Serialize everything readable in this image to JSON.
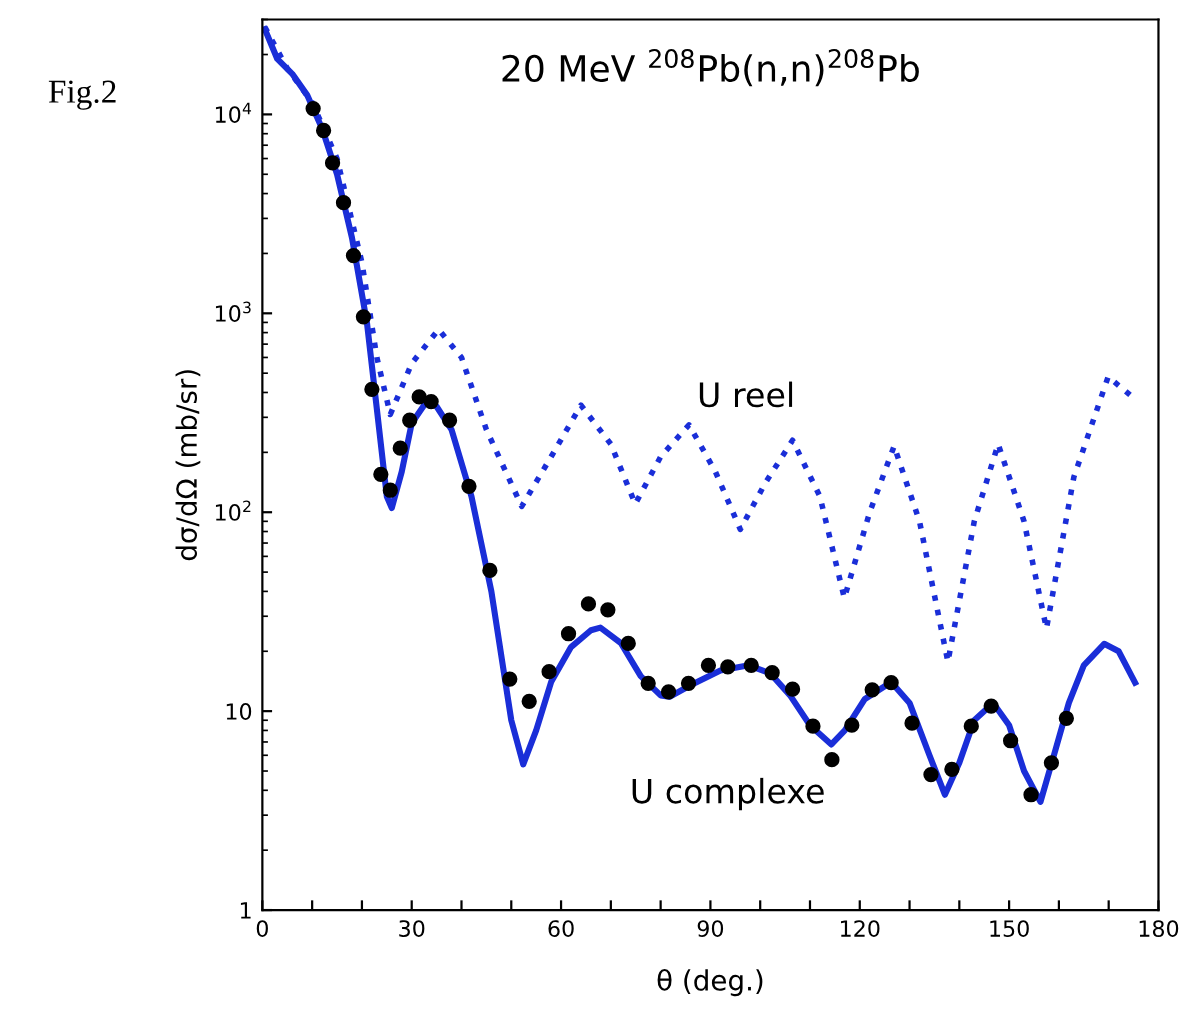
{
  "chart_data": {
    "type": "line",
    "title": "20 MeV $^{208}$Pb(n,n)$^{208}$Pb",
    "xlabel": "θ (deg.)",
    "ylabel": "dσ/dΩ (mb/sr)",
    "annotations": [
      "Fig.2"
    ],
    "log": "y",
    "xlim": [
      0,
      180
    ],
    "ylim": [
      1,
      30000
    ],
    "xticks": [
      0,
      {
        "value": 10,
        "label": null
      },
      {
        "value": 20,
        "label": null
      },
      30,
      {
        "value": 40,
        "label": null
      },
      {
        "value": 50,
        "label": null
      },
      60,
      {
        "value": 70,
        "label": null
      },
      {
        "value": 80,
        "label": null
      },
      90,
      {
        "value": 100,
        "label": null
      },
      {
        "value": 110,
        "label": null
      },
      120,
      {
        "value": 130,
        "label": null
      },
      {
        "value": 140,
        "label": null
      },
      150,
      {
        "value": 160,
        "label": null
      },
      {
        "value": 170,
        "label": null
      },
      180
    ],
    "yticks": [
      1,
      10,
      {
        "value": 100,
        "label": "10$^{2}$"
      },
      {
        "value": 1000,
        "label": "10$^{3}$"
      },
      {
        "value": 10000,
        "label": "10$^{4}$"
      }
    ],
    "series": [
      {
        "type": "scatter",
        "color": "#000000",
        "marker": "circle",
        "x": [
          10.2,
          12.3,
          14.1,
          16.3,
          18.3,
          20.3,
          22.0,
          23.8,
          25.7,
          27.7,
          29.6,
          31.5,
          33.9,
          37.6,
          41.5,
          45.7,
          49.7,
          53.6,
          57.6,
          61.5,
          65.5,
          69.4,
          73.5,
          77.5,
          81.6,
          85.6,
          89.6,
          93.5,
          98.2,
          102.4,
          106.5,
          110.6,
          114.4,
          118.4,
          122.5,
          126.3,
          130.5,
          134.3,
          138.5,
          142.4,
          146.4,
          150.3,
          154.4,
          158.5,
          161.5
        ],
        "values": [
          10700,
          8300,
          5700,
          3600,
          1950,
          960,
          415,
          155,
          129,
          210,
          290,
          380,
          360,
          290,
          135,
          51,
          14.5,
          11.2,
          15.8,
          24.5,
          34.6,
          32.3,
          21.9,
          13.8,
          12.5,
          13.8,
          17,
          16.7,
          17,
          15.6,
          12.9,
          8.4,
          5.7,
          8.5,
          12.8,
          13.9,
          8.7,
          4.8,
          5.1,
          8.4,
          10.6,
          7.1,
          3.8,
          5.5,
          9.2
        ]
      },
      {
        "name": "U complexe",
        "color": "#1a2ed8",
        "line_style": "solid",
        "x": [
          0.5,
          3,
          6,
          9,
          12,
          15,
          18,
          21,
          23,
          25,
          26,
          28,
          30,
          33,
          35,
          38,
          42,
          46,
          50,
          52.4,
          55,
          58,
          62,
          66,
          67.9,
          72,
          76,
          80,
          81.8,
          86,
          92,
          97.7,
          102,
          106,
          110,
          114.3,
          117,
          121,
          126.3,
          130,
          134,
          137.1,
          140,
          143,
          146.8,
          150,
          153,
          156.3,
          159,
          162,
          165,
          169.1,
          172,
          175.3
        ],
        "values": [
          26800,
          19000,
          16000,
          12500,
          8500,
          5000,
          2400,
          900,
          330,
          120,
          105,
          160,
          280,
          360,
          340,
          260,
          120,
          40,
          9,
          5.4,
          8,
          14,
          21,
          25.5,
          26.3,
          22,
          15,
          12,
          11.8,
          13.5,
          16,
          17,
          15.5,
          12,
          8.5,
          6.8,
          8,
          11.5,
          14,
          11,
          6,
          3.8,
          5.5,
          9,
          11,
          8.5,
          5,
          3.5,
          6,
          11,
          17,
          21.8,
          20,
          13.9
        ]
      },
      {
        "name": "U reel",
        "color": "#1a2ed8",
        "line_style": "dotted",
        "x": [
          0.5,
          5,
          10,
          15,
          20,
          23,
          25.7,
          30,
          35.4,
          40,
          45,
          52.1,
          58,
          64.0,
          70,
          74.9,
          80,
          85.7,
          91,
          96.0,
          101,
          106.5,
          112,
          116.9,
          122,
          126.9,
          132,
          137.7,
          143,
          147.8,
          153,
          157.5,
          163,
          169.9,
          175.3
        ],
        "values": [
          27500,
          17000,
          11500,
          6000,
          1800,
          600,
          310,
          560,
          830,
          600,
          260,
          107,
          190,
          345,
          220,
          110,
          190,
          275,
          160,
          82,
          140,
          230,
          120,
          37,
          100,
          215,
          90,
          17.7,
          90,
          220,
          90,
          26,
          150,
          480,
          370
        ]
      }
    ]
  }
}
